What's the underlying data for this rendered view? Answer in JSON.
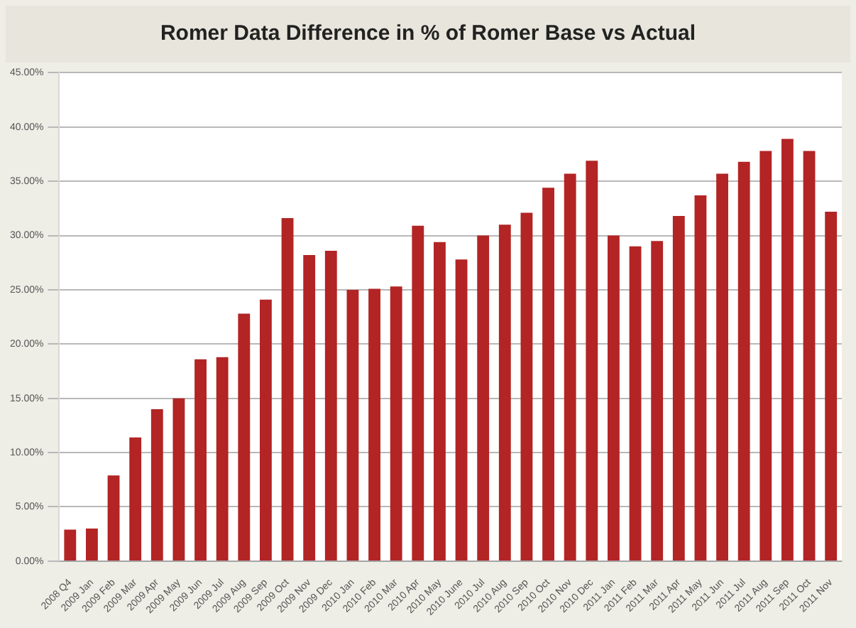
{
  "chart_data": {
    "type": "bar",
    "title": "Romer Data Difference in % of Romer Base vs Actual",
    "categories": [
      "2008 Q4",
      "2009 Jan",
      "2009 Feb",
      "2009 Mar",
      "2009 Apr",
      "2009 May",
      "2009 Jun",
      "2009 Jul",
      "2009 Aug",
      "2009 Sep",
      "2009 Oct",
      "2009 Nov",
      "2009 Dec",
      "2010 Jan",
      "2010 Feb",
      "2010 Mar",
      "2010 Apr",
      "2010 May",
      "2010 June",
      "2010 Jul",
      "2010 Aug",
      "2010 Sep",
      "2010 Oct",
      "2010 Nov",
      "2010 Dec",
      "2011 Jan",
      "2011 Feb",
      "2011 Mar",
      "2011 Apr",
      "2011 May",
      "2011 Jun",
      "2011 Jul",
      "2011 Aug",
      "2011 Sep",
      "2011 Oct",
      "2011 Nov"
    ],
    "values": [
      2.9,
      3.0,
      7.9,
      11.4,
      14.0,
      15.0,
      18.6,
      18.8,
      22.8,
      24.1,
      31.6,
      28.2,
      28.6,
      25.0,
      25.1,
      25.3,
      30.9,
      29.4,
      27.8,
      30.0,
      31.0,
      32.1,
      34.4,
      35.7,
      36.9,
      30.0,
      29.0,
      29.5,
      31.8,
      33.7,
      35.7,
      36.8,
      37.8,
      38.9,
      37.8,
      32.2
    ],
    "color": "#b32424",
    "ylim": [
      0,
      45
    ],
    "yticks": [
      {
        "value": 0,
        "label": "0.00%"
      },
      {
        "value": 5,
        "label": "5.00%"
      },
      {
        "value": 10,
        "label": "10.00%"
      },
      {
        "value": 15,
        "label": "15.00%"
      },
      {
        "value": 20,
        "label": "20.00%"
      },
      {
        "value": 25,
        "label": "25.00%"
      },
      {
        "value": 30,
        "label": "30.00%"
      },
      {
        "value": 35,
        "label": "35.00%"
      },
      {
        "value": 40,
        "label": "40.00%"
      },
      {
        "value": 45,
        "label": "45.00%"
      }
    ],
    "grid": "y"
  }
}
